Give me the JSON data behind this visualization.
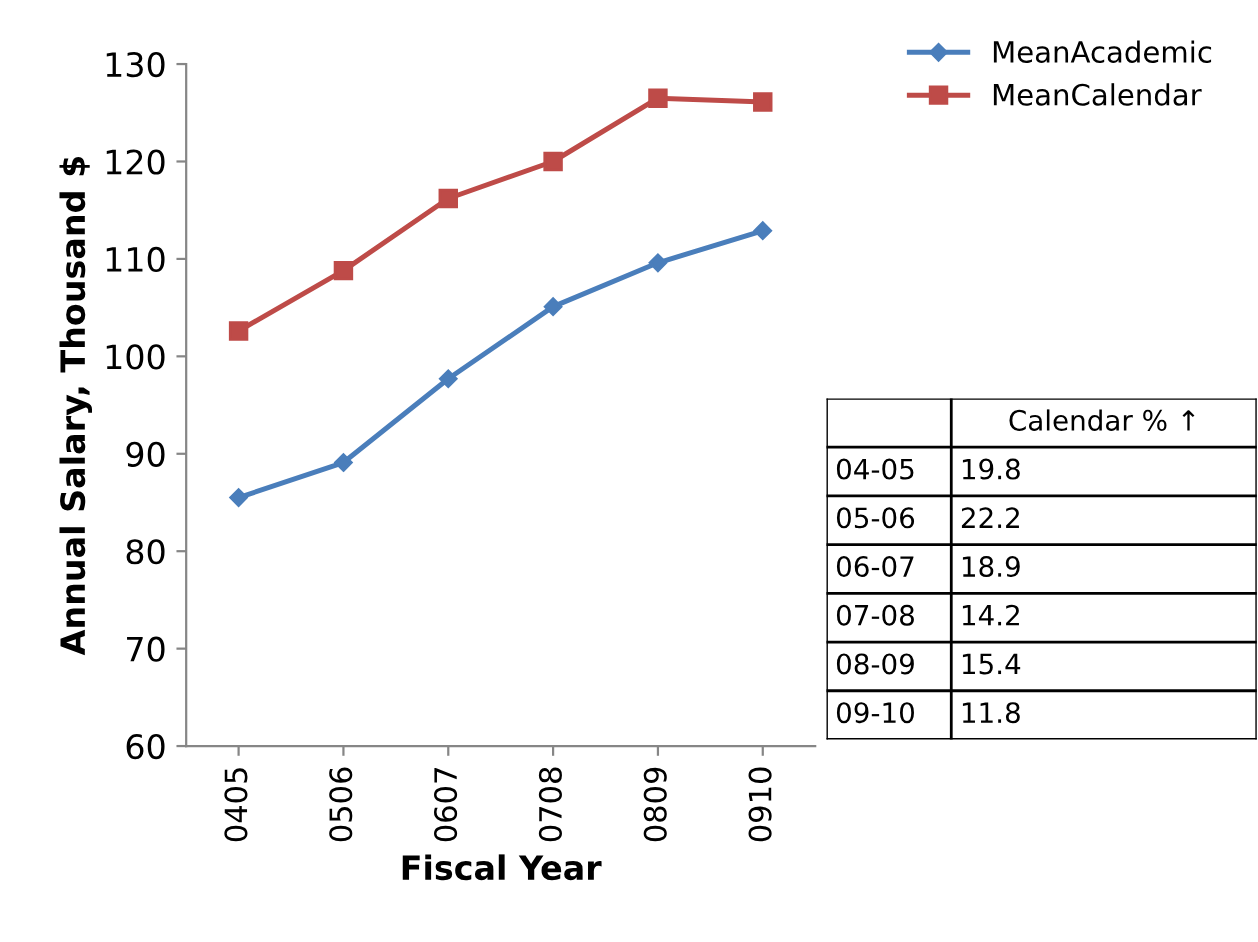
{
  "chart_data": [
    {
      "type": "line",
      "xlabel": "Fiscal Year",
      "ylabel": "Annual Salary, Thousand $",
      "categories": [
        "0405",
        "0506",
        "0607",
        "0708",
        "0809",
        "0910"
      ],
      "series": [
        {
          "name": "MeanAcademic",
          "color": "#4a7ebb",
          "marker": "diamond",
          "values": [
            85.5,
            89.1,
            97.7,
            105.1,
            109.6,
            112.9
          ]
        },
        {
          "name": "MeanCalendar",
          "color": "#be4b48",
          "marker": "square",
          "values": [
            102.6,
            108.8,
            116.2,
            120.0,
            126.5,
            126.1
          ]
        }
      ],
      "ylim": [
        60,
        130
      ],
      "yticks": [
        60,
        70,
        80,
        90,
        100,
        110,
        120,
        130
      ],
      "grid": false,
      "legend": "top right",
      "line_style": "solid"
    },
    {
      "type": "other",
      "title": "Calendar % ↑",
      "categories": [
        "04-05",
        "05-06",
        "06-07",
        "07-08",
        "08-09",
        "09-10"
      ],
      "values": [
        19.8,
        22.2,
        18.9,
        14.2,
        15.4,
        11.8
      ],
      "data_labels": true
    }
  ]
}
